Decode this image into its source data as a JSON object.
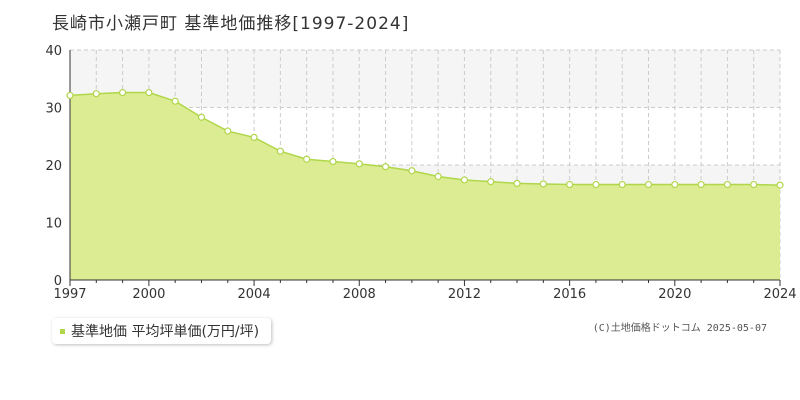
{
  "title": "長崎市小瀬戸町 基準地価推移[1997-2024]",
  "legend": {
    "label": "基準地価 平均坪単価(万円/坪)"
  },
  "credit": "(C)土地価格ドットコム 2025-05-07",
  "colors": {
    "fill": "#dcec93",
    "line": "#b0d64a",
    "marker_fill": "#ffffff",
    "grid": "#cccccc",
    "band": "#f5f5f5",
    "axis": "#333333"
  },
  "chart_data": {
    "type": "area",
    "title": "長崎市小瀬戸町 基準地価推移[1997-2024]",
    "xlabel": "",
    "ylabel": "",
    "xlim": [
      1997,
      2024
    ],
    "ylim": [
      0,
      40
    ],
    "yticks": [
      0,
      10,
      20,
      30,
      40
    ],
    "xticks": [
      1997,
      2000,
      2004,
      2008,
      2012,
      2016,
      2020,
      2024
    ],
    "grid": true,
    "legend_position": "bottom-left",
    "series": [
      {
        "name": "基準地価 平均坪単価(万円/坪)",
        "x": [
          1997,
          1998,
          1999,
          2000,
          2001,
          2002,
          2003,
          2004,
          2005,
          2006,
          2007,
          2008,
          2009,
          2010,
          2011,
          2012,
          2013,
          2014,
          2015,
          2016,
          2017,
          2018,
          2019,
          2020,
          2021,
          2022,
          2023,
          2024
        ],
        "values": [
          32.1,
          32.4,
          32.6,
          32.6,
          31.1,
          28.3,
          25.9,
          24.8,
          22.4,
          21.0,
          20.6,
          20.2,
          19.7,
          19.0,
          18.0,
          17.4,
          17.1,
          16.8,
          16.7,
          16.6,
          16.6,
          16.6,
          16.6,
          16.6,
          16.6,
          16.6,
          16.6,
          16.5
        ]
      }
    ]
  }
}
